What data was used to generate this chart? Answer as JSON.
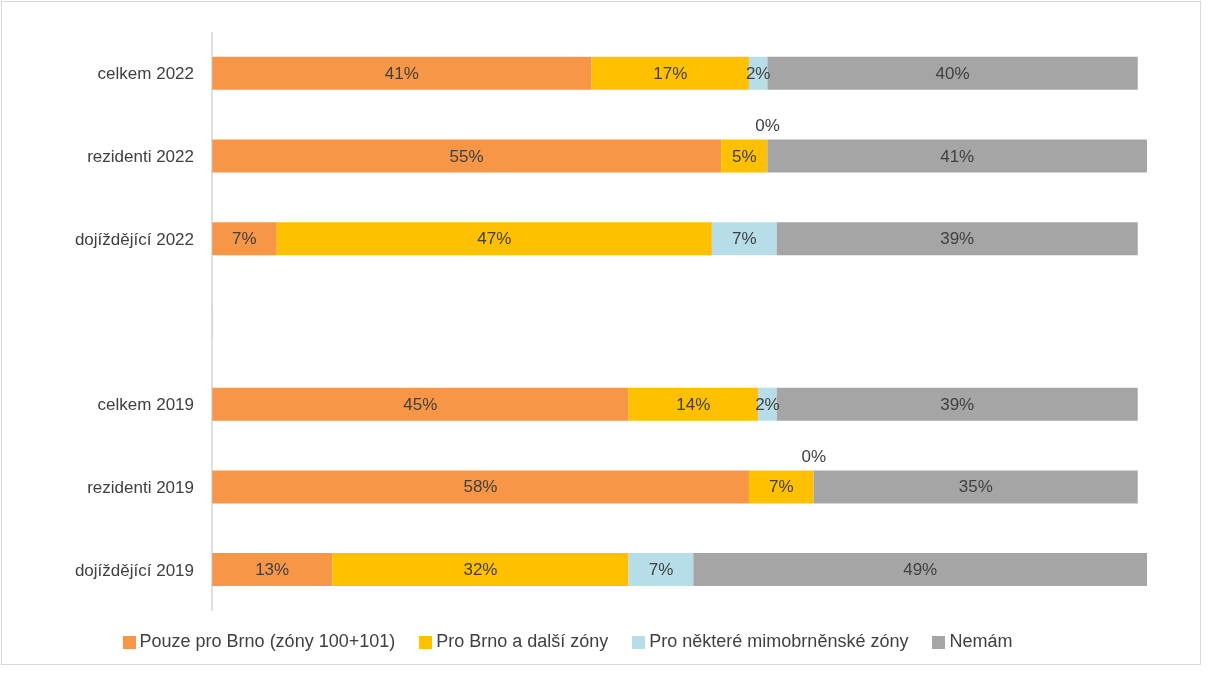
{
  "chart_data": {
    "type": "bar",
    "orientation": "horizontal",
    "stacked": true,
    "categories": [
      "celkem 2022",
      "rezidenti 2022",
      "dojíždějící 2022",
      null,
      "celkem 2019",
      "rezidenti 2019",
      "dojíždějící 2019"
    ],
    "series": [
      {
        "name": "Pouze pro Brno (zóny 100+101)",
        "color": "#f79646",
        "values": [
          41,
          55,
          7,
          null,
          45,
          58,
          13
        ],
        "value_labels": [
          "41%",
          "55%",
          "7%",
          null,
          "45%",
          "58%",
          "13%"
        ]
      },
      {
        "name": "Pro Brno a další zóny",
        "color": "#ffc000",
        "values": [
          17,
          5,
          47,
          null,
          14,
          7,
          32
        ],
        "value_labels": [
          "17%",
          "5%",
          "47%",
          null,
          "14%",
          "7%",
          "32%"
        ]
      },
      {
        "name": "Pro některé mimobrněnské zóny",
        "color": "#b7dee8",
        "values": [
          2,
          0,
          7,
          null,
          2,
          0,
          7
        ],
        "value_labels": [
          "2%",
          "0%",
          "7%",
          null,
          "2%",
          "0%",
          "7%"
        ]
      },
      {
        "name": "Nemám",
        "color": "#a5a5a5",
        "values": [
          40,
          41,
          39,
          null,
          39,
          35,
          49
        ],
        "value_labels": [
          "40%",
          "41%",
          "39%",
          null,
          "39%",
          "35%",
          "49%"
        ]
      }
    ],
    "xlim": [
      0,
      101
    ],
    "tick_labels": "y",
    "grid": false,
    "legend": "bottom"
  }
}
